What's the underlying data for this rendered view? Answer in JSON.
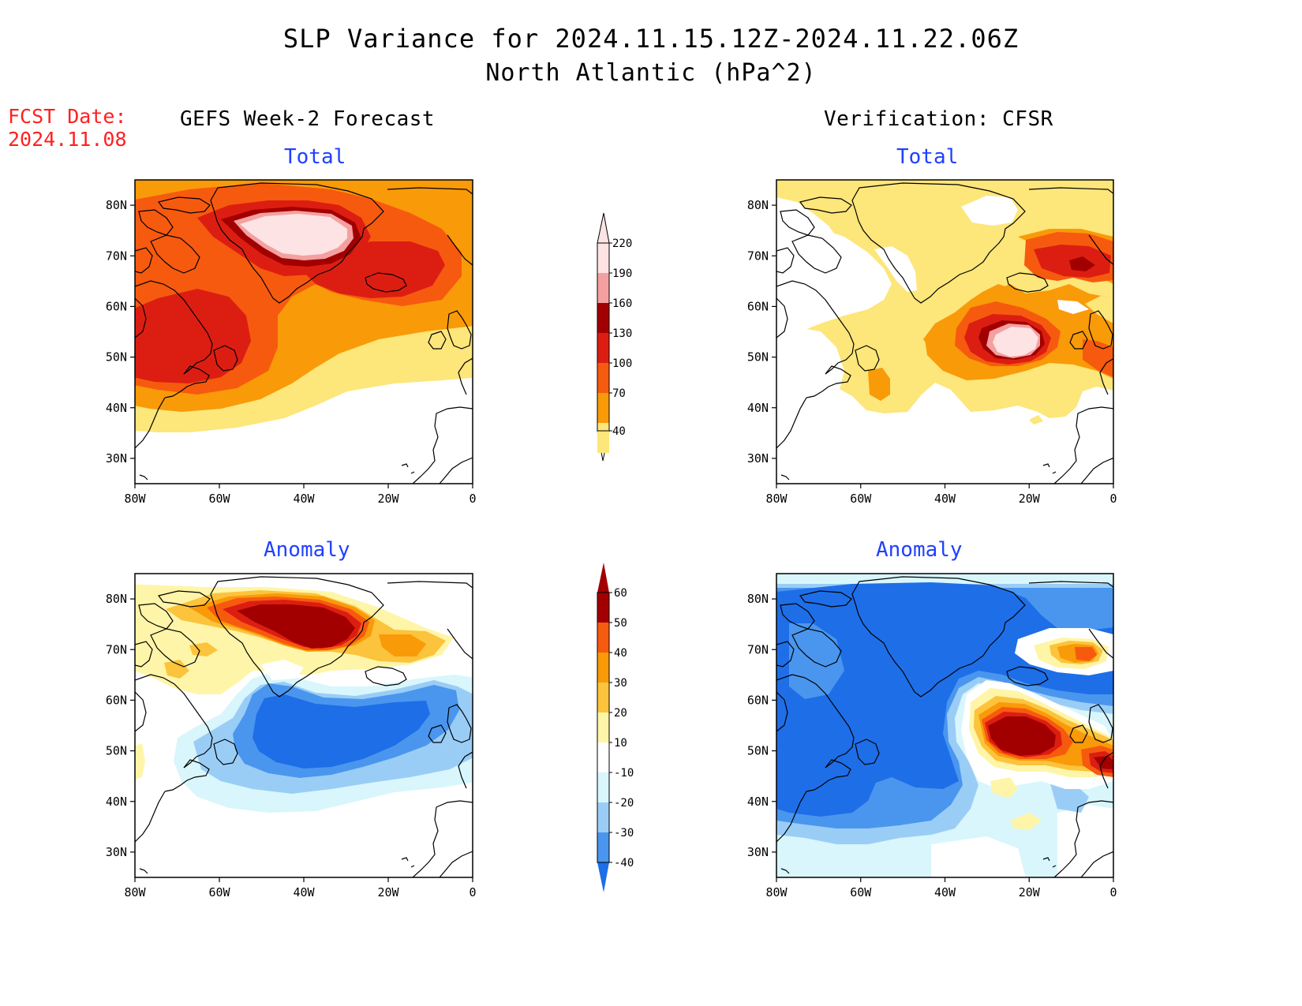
{
  "title": {
    "line1": "SLP Variance for 2024.11.15.12Z-2024.11.22.06Z",
    "line2": "North Atlantic (hPa^2)"
  },
  "fcst_label": {
    "line1": "FCST Date:",
    "line2": "2024.11.08"
  },
  "columns": {
    "left": "GEFS Week-2 Forecast",
    "right": "Verification: CFSR"
  },
  "panels": {
    "top_left": {
      "subtitle": "Total"
    },
    "top_right": {
      "subtitle": "Total"
    },
    "bottom_left": {
      "subtitle": "Anomaly"
    },
    "bottom_right": {
      "subtitle": "Anomaly"
    }
  },
  "axes": {
    "lat_ticks": [
      "30N",
      "40N",
      "50N",
      "60N",
      "70N",
      "80N"
    ],
    "lat_values": [
      30,
      40,
      50,
      60,
      70,
      80
    ],
    "lon_ticks": [
      "80W",
      "60W",
      "40W",
      "20W",
      "0"
    ],
    "lon_values": [
      -80,
      -60,
      -40,
      -20,
      0
    ],
    "lon_range": [
      -80,
      0
    ],
    "lat_range": [
      25,
      85
    ]
  },
  "colorbars": {
    "total": {
      "labels": [
        "40",
        "70",
        "100",
        "130",
        "160",
        "190",
        "220"
      ],
      "colors": [
        "#fde67a",
        "#f99a08",
        "#f65a0f",
        "#dc1e12",
        "#a20000",
        "#f4a0a0",
        "#fde3e3"
      ]
    },
    "anomaly": {
      "labels": [
        "-40",
        "-30",
        "-20",
        "-10",
        "10",
        "20",
        "30",
        "40",
        "50",
        "60"
      ],
      "colors": [
        "#1e6ee8",
        "#4a96ee",
        "#9acdf6",
        "#d8f6fc",
        "#ffffff",
        "#fff5a8",
        "#fcc33c",
        "#f99a08",
        "#f65a0f",
        "#dc1e12",
        "#a20000"
      ]
    }
  }
}
